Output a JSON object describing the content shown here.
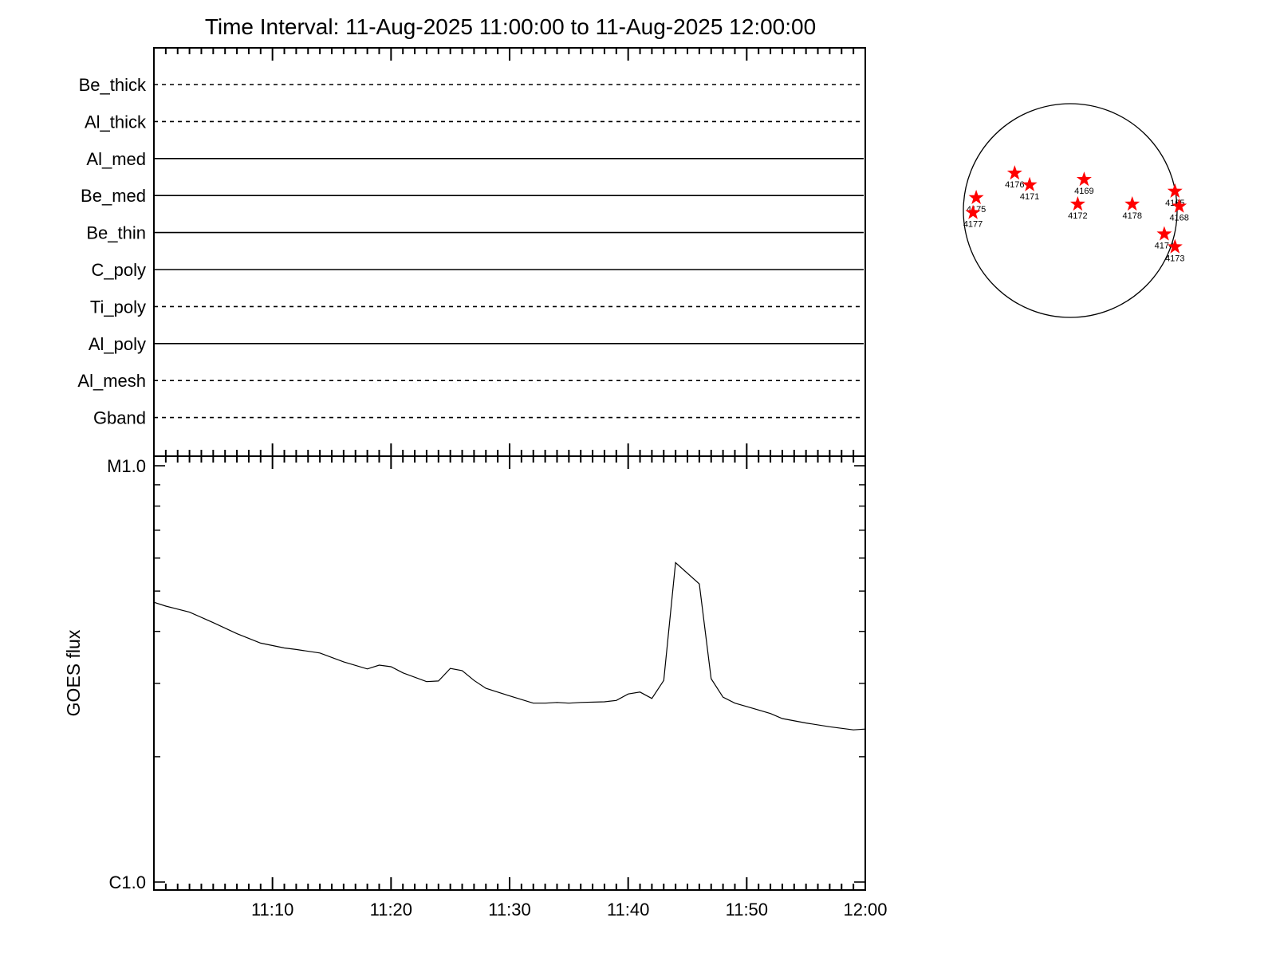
{
  "title": "Time Interval: 11-Aug-2025 11:00:00 to 11-Aug-2025 12:00:00",
  "colors": {
    "axis": "#000000",
    "line": "#000000",
    "star": "#ff0000",
    "background": "#ffffff"
  },
  "chart_data": [
    {
      "type": "line",
      "name": "filter-timeline",
      "x_range_minutes": [
        0,
        60
      ],
      "categories": [
        "Be_thick",
        "Al_thick",
        "Al_med",
        "Be_med",
        "Be_thin",
        "C_poly",
        "Ti_poly",
        "Al_poly",
        "Al_mesh",
        "Gband"
      ],
      "series": [
        {
          "label": "Be_thick",
          "style": "dashed"
        },
        {
          "label": "Al_thick",
          "style": "dashed"
        },
        {
          "label": "Al_med",
          "style": "solid"
        },
        {
          "label": "Be_med",
          "style": "solid"
        },
        {
          "label": "Be_thin",
          "style": "solid"
        },
        {
          "label": "C_poly",
          "style": "solid"
        },
        {
          "label": "Ti_poly",
          "style": "dashed"
        },
        {
          "label": "Al_poly",
          "style": "solid"
        },
        {
          "label": "Al_mesh",
          "style": "dashed"
        },
        {
          "label": "Gband",
          "style": "dashed"
        }
      ]
    },
    {
      "type": "line",
      "ylabel": "GOES flux",
      "y_scale": "log",
      "ylim": [
        1e-06,
        1e-05
      ],
      "ytick_labels": [
        "C1.0",
        "M1.0"
      ],
      "x_range_minutes": [
        0,
        60
      ],
      "xtick_labels": [
        "11:10",
        "11:20",
        "11:30",
        "11:40",
        "11:50",
        "12:00"
      ],
      "x": [
        0,
        1,
        3,
        5,
        7,
        9,
        11,
        12,
        14,
        16,
        18,
        19,
        20,
        21,
        23,
        24,
        25,
        26,
        27,
        28,
        30,
        32,
        33,
        34,
        35,
        36,
        38,
        39,
        40,
        41,
        42,
        43,
        44,
        46,
        47,
        48,
        49,
        50,
        52,
        53,
        55,
        57,
        59,
        60
      ],
      "values": [
        4.7e-06,
        4.6e-06,
        4.45e-06,
        4.2e-06,
        3.95e-06,
        3.75e-06,
        3.65e-06,
        3.62e-06,
        3.55e-06,
        3.38e-06,
        3.25e-06,
        3.32e-06,
        3.29e-06,
        3.18e-06,
        3.03e-06,
        3.04e-06,
        3.26e-06,
        3.22e-06,
        3.05e-06,
        2.92e-06,
        2.8e-06,
        2.69e-06,
        2.69e-06,
        2.7e-06,
        2.69e-06,
        2.7e-06,
        2.71e-06,
        2.73e-06,
        2.83e-06,
        2.86e-06,
        2.76e-06,
        3.05e-06,
        5.85e-06,
        5.2e-06,
        3.08e-06,
        2.78e-06,
        2.69e-06,
        2.64e-06,
        2.54e-06,
        2.47e-06,
        2.41e-06,
        2.36e-06,
        2.32e-06,
        2.33e-06
      ]
    }
  ],
  "sun_map": {
    "regions": [
      {
        "id": "4176",
        "lon": -0.52,
        "lat": 0.35
      },
      {
        "id": "4171",
        "lon": -0.38,
        "lat": 0.24
      },
      {
        "id": "4169",
        "lon": 0.13,
        "lat": 0.29
      },
      {
        "id": "4175",
        "lon": -0.88,
        "lat": 0.12
      },
      {
        "id": "4177",
        "lon": -0.91,
        "lat": -0.02
      },
      {
        "id": "4172",
        "lon": 0.07,
        "lat": 0.06
      },
      {
        "id": "4178",
        "lon": 0.58,
        "lat": 0.06
      },
      {
        "id": "4165",
        "lon": 0.98,
        "lat": 0.18
      },
      {
        "id": "4168",
        "lon": 1.02,
        "lat": 0.04
      },
      {
        "id": "4174",
        "lon": 0.88,
        "lat": -0.22
      },
      {
        "id": "4173",
        "lon": 0.98,
        "lat": -0.34
      }
    ]
  }
}
